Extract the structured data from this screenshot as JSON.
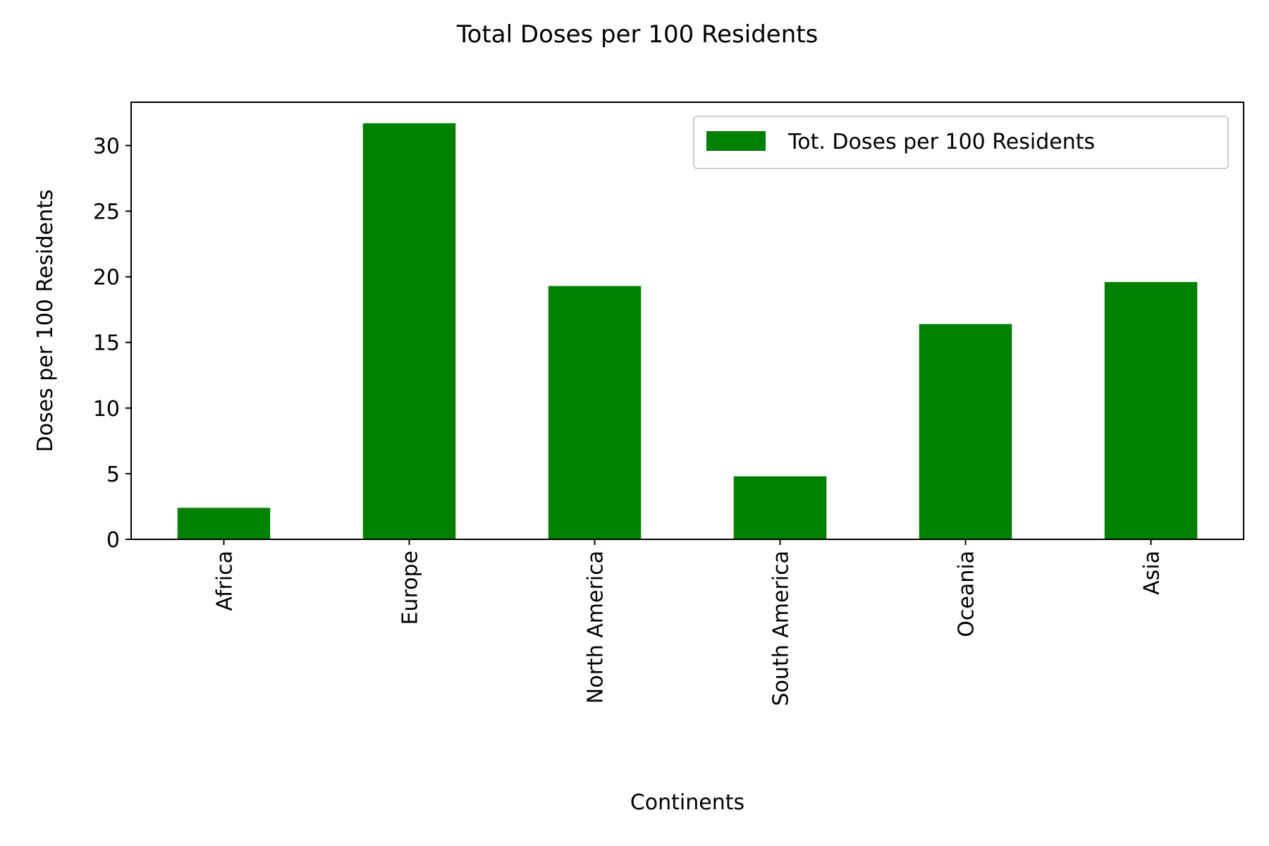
{
  "chart_data": {
    "type": "bar",
    "title": "Total Doses per 100 Residents",
    "xlabel": "Continents",
    "ylabel": "Doses per 100 Residents",
    "categories": [
      "Africa",
      "Europe",
      "North America",
      "South America",
      "Oceania",
      "Asia"
    ],
    "series": [
      {
        "name": "Tot. Doses per 100 Residents",
        "values": [
          2.4,
          31.7,
          19.3,
          4.8,
          16.4,
          19.6
        ]
      }
    ],
    "ylim": [
      0,
      33.3
    ],
    "yticks": [
      0,
      5,
      10,
      15,
      20,
      25,
      30
    ],
    "grid": false,
    "legend_position": "top-right",
    "bar_color": "#008000"
  }
}
